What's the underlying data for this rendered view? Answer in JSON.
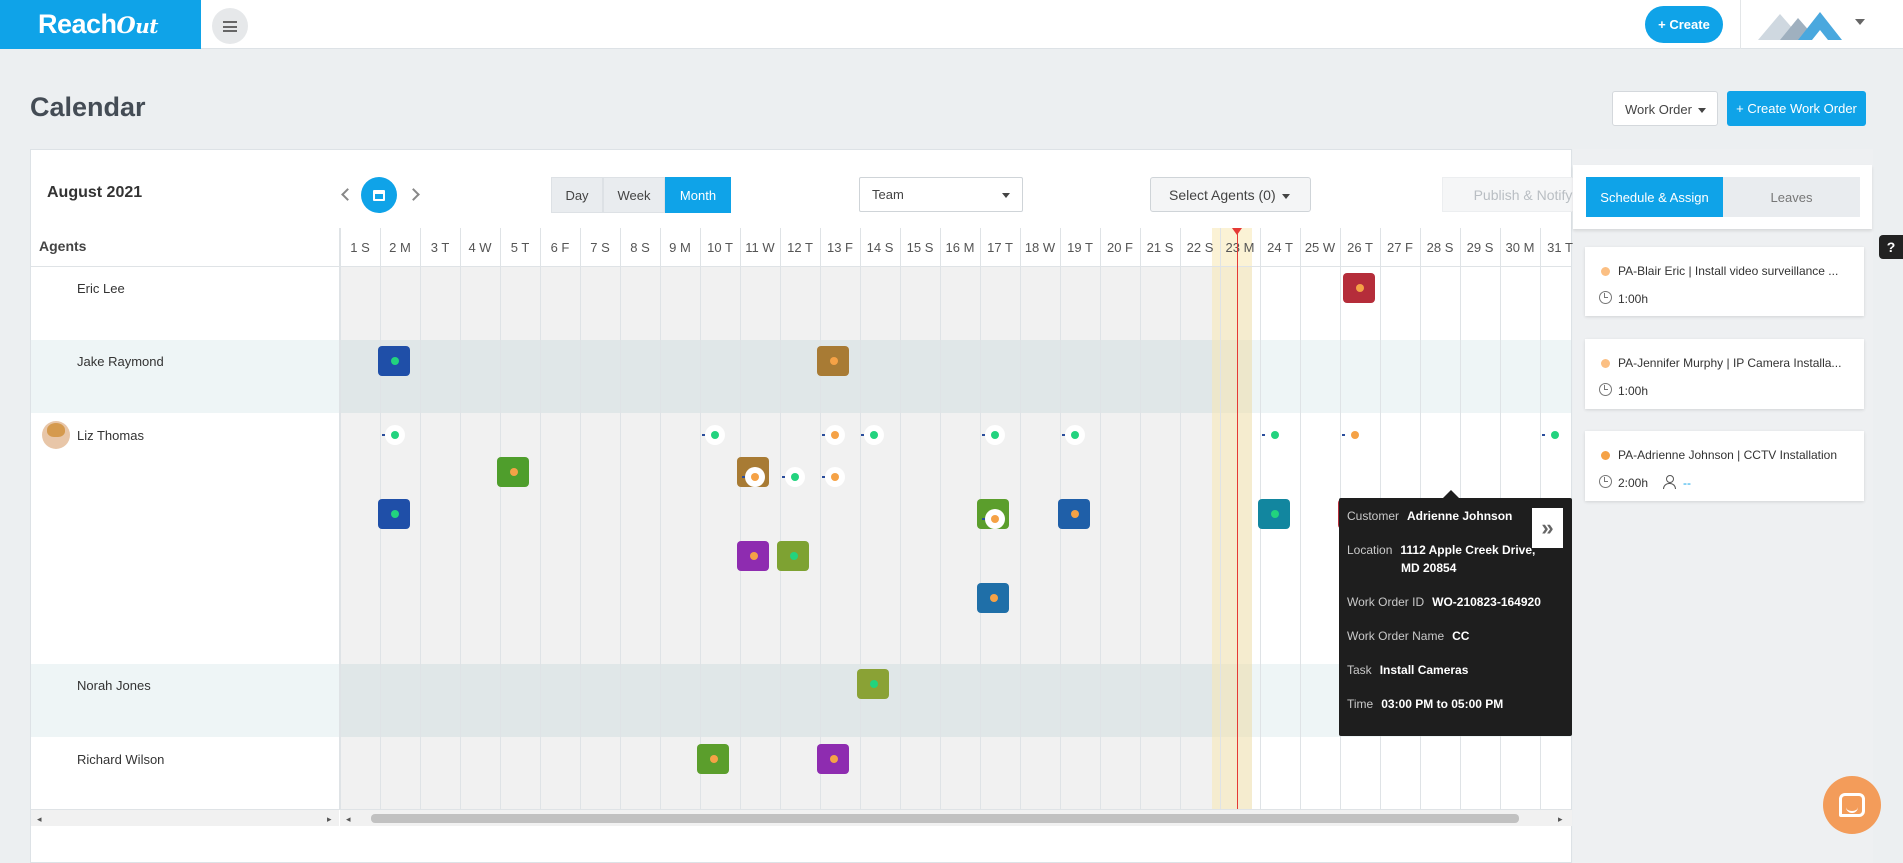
{
  "app": {
    "logo_text": "Reach",
    "logo_tail": "ut",
    "create_label": "+ Create"
  },
  "page": {
    "title": "Calendar",
    "work_order_select": "Work Order",
    "create_work_order": "+ Create Work Order"
  },
  "toolbar": {
    "month": "August 2021",
    "views": [
      "Day",
      "Week",
      "Month"
    ],
    "active_view": "Month",
    "team": "Team",
    "select_agents": "Select Agents (0)",
    "publish": "Publish & Notify"
  },
  "grid": {
    "agents_header": "Agents",
    "days": [
      "1 S",
      "2 M",
      "3 T",
      "4 W",
      "5 T",
      "6 F",
      "7 S",
      "8 S",
      "9 M",
      "10 T",
      "11 W",
      "12 T",
      "13 F",
      "14 S",
      "15 S",
      "16 M",
      "17 T",
      "18 W",
      "19 T",
      "20 F",
      "21 S",
      "22 S",
      "23 M",
      "24 T",
      "25 W",
      "26 T",
      "27 F",
      "28 S",
      "29 S",
      "30 M",
      "31 T"
    ],
    "today": "23 M",
    "agents": [
      {
        "name": "Eric Lee"
      },
      {
        "name": "Jake Raymond"
      },
      {
        "name": "Liz Thomas"
      },
      {
        "name": "Norah Jones"
      },
      {
        "name": "Richard Wilson"
      }
    ]
  },
  "tooltip": {
    "customer_label": "Customer",
    "customer": "Adrienne Johnson",
    "location_label": "Location",
    "location_line1": "1112 Apple Creek Drive,",
    "location_line2": "MD 20854",
    "wo_id_label": "Work Order ID",
    "wo_id": "WO-210823-164920",
    "wo_name_label": "Work Order Name",
    "wo_name": "CC",
    "task_label": "Task",
    "task": "Install Cameras",
    "time_label": "Time",
    "time": "03:00 PM to 05:00 PM",
    "expand": "»"
  },
  "side": {
    "tabs": [
      "Schedule & Assign",
      "Leaves"
    ],
    "jobs": [
      {
        "title": "PA-Blair Eric | Install video surveillance ...",
        "duration": "1:00h"
      },
      {
        "title": "PA-Jennifer Murphy | IP Camera Installa...",
        "duration": "1:00h"
      },
      {
        "title": "PA-Adrienne Johnson | CCTV Installation",
        "duration": "2:00h",
        "agent": "--"
      }
    ]
  },
  "colors": {
    "accent": "#0fa3e8",
    "today": "#e53935",
    "dot_orange": "#f5a246",
    "dot_green": "#22d37e"
  }
}
